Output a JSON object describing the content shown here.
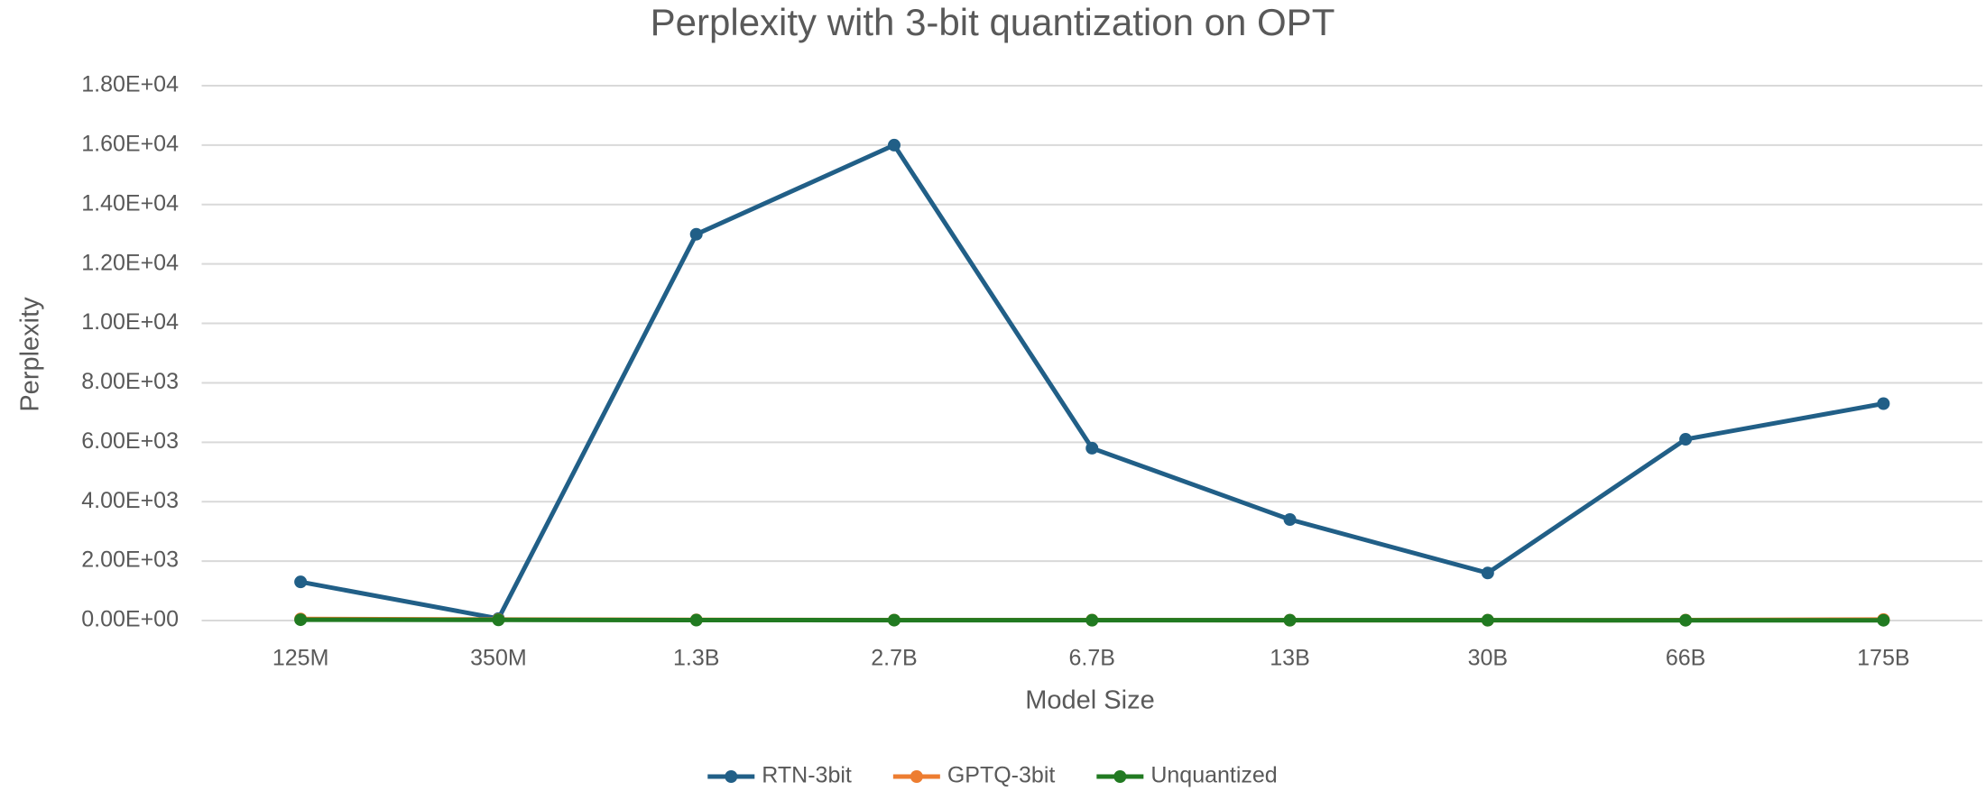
{
  "chart_data": {
    "type": "line",
    "title": "Perplexity with 3-bit quantization on OPT",
    "x_label": "Model Size",
    "y_label": "Perplexity",
    "categories": [
      "125M",
      "350M",
      "1.3B",
      "2.7B",
      "6.7B",
      "13B",
      "30B",
      "66B",
      "175B"
    ],
    "series": [
      {
        "name": "RTN-3bit",
        "color": "#215f87",
        "values": [
          1300,
          64.57,
          13000,
          16000,
          5800,
          3400,
          1600,
          6100,
          7300
        ]
      },
      {
        "name": "GPTQ-3bit",
        "color": "#ed7d31",
        "values": [
          53.85,
          33.79,
          20.97,
          16.88,
          14.86,
          11.61,
          10.27,
          14.16,
          35
        ]
      },
      {
        "name": "Unquantized",
        "color": "#217a21",
        "values": [
          27.65,
          22.0,
          14.62,
          12.47,
          10.86,
          10.13,
          9.56,
          9.34,
          8.34
        ]
      }
    ],
    "ylim": [
      0,
      18000
    ],
    "yticks": [
      {
        "value": 0,
        "label": "0.00E+00"
      },
      {
        "value": 2000,
        "label": "2.00E+03"
      },
      {
        "value": 4000,
        "label": "4.00E+03"
      },
      {
        "value": 6000,
        "label": "6.00E+03"
      },
      {
        "value": 8000,
        "label": "8.00E+03"
      },
      {
        "value": 10000,
        "label": "1.00E+04"
      },
      {
        "value": 12000,
        "label": "1.20E+04"
      },
      {
        "value": 14000,
        "label": "1.40E+04"
      },
      {
        "value": 16000,
        "label": "1.60E+04"
      },
      {
        "value": 18000,
        "label": "1.80E+04"
      }
    ],
    "grid": true,
    "legend": "bottom"
  }
}
